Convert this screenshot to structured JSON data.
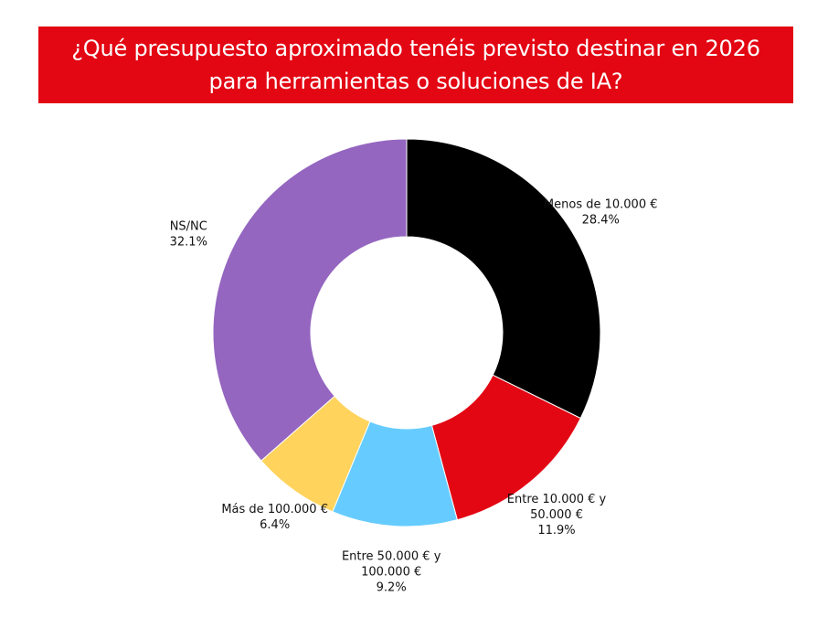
{
  "title": "¿Qué presupuesto aproximado tenéis previsto destinar en 2026 para herramientas o soluciones de IA?",
  "colors": {
    "banner": "#e30613",
    "banner_text": "#ffffff"
  },
  "chart_data": {
    "type": "pie",
    "variant": "donut",
    "legend": "none",
    "slices": [
      {
        "label_lines": [
          "Menos de 10.000 €"
        ],
        "value": 28.4,
        "value_label": "28.4%",
        "color": "#000000"
      },
      {
        "label_lines": [
          "Entre 10.000 € y",
          "50.000 €"
        ],
        "value": 11.9,
        "value_label": "11.9%",
        "color": "#e30613"
      },
      {
        "label_lines": [
          "Entre 50.000 € y",
          "100.000 €"
        ],
        "value": 9.2,
        "value_label": "9.2%",
        "color": "#66ccff"
      },
      {
        "label_lines": [
          "Más de 100.000 €"
        ],
        "value": 6.4,
        "value_label": "6.4%",
        "color": "#ffd35c"
      },
      {
        "label_lines": [
          "NS/NC"
        ],
        "value": 32.1,
        "value_label": "32.1%",
        "color": "#9466c0"
      }
    ]
  }
}
